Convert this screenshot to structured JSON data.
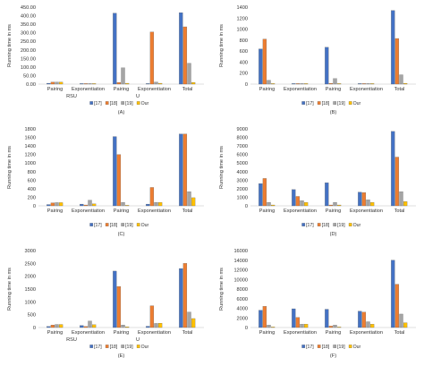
{
  "series_colors": [
    "#4472c4",
    "#ed7d31",
    "#a5a5a5",
    "#ffc000"
  ],
  "chart_data": [
    {
      "type": "bar",
      "panel_label": "(A)",
      "ylabel": "Running time in ms",
      "categories": [
        "Pairing",
        "Exponentiation",
        "Pairing",
        "Exponentiation",
        "Total"
      ],
      "group_labels": [
        {
          "text": "RSU",
          "categories": [
            0,
            1
          ]
        },
        {
          "text": "U",
          "categories": [
            2,
            3
          ]
        }
      ],
      "ylim": [
        0,
        450
      ],
      "yticks": [
        "0.00",
        "50.00",
        "100.00",
        "150.00",
        "200.00",
        "250.00",
        "300.00",
        "350.00",
        "400.00",
        "450.00"
      ],
      "series": [
        {
          "name": "[17]",
          "values": [
            5,
            2,
            415,
            2,
            418
          ]
        },
        {
          "name": "[18]",
          "values": [
            12,
            2,
            10,
            305,
            335
          ]
        },
        {
          "name": "[19]",
          "values": [
            12,
            1,
            95,
            12,
            122
          ]
        },
        {
          "name": "Our",
          "values": [
            12,
            1,
            5,
            5,
            10
          ]
        }
      ]
    },
    {
      "type": "bar",
      "panel_label": "(B)",
      "ylabel": "Running time in ms",
      "categories": [
        "Pairing",
        "Exponentiation",
        "Pairing",
        "Exponentiation",
        "Total"
      ],
      "group_labels": [],
      "ylim": [
        0,
        1400
      ],
      "yticks": [
        "0",
        "200",
        "400",
        "600",
        "800",
        "1000",
        "1200",
        "1400"
      ],
      "series": [
        {
          "name": "[17]",
          "values": [
            640,
            8,
            670,
            8,
            1340
          ]
        },
        {
          "name": "[18]",
          "values": [
            820,
            8,
            15,
            8,
            830
          ]
        },
        {
          "name": "[19]",
          "values": [
            70,
            5,
            100,
            6,
            170
          ]
        },
        {
          "name": "Our",
          "values": [
            10,
            5,
            10,
            6,
            15
          ]
        }
      ]
    },
    {
      "type": "bar",
      "panel_label": "(C)",
      "ylabel": "Running time in ms",
      "categories": [
        "Pairing",
        "Exponentiation",
        "Pairing",
        "Exponentiation",
        "Total"
      ],
      "group_labels": [],
      "ylim": [
        0,
        1800
      ],
      "yticks": [
        "0",
        "200",
        "400",
        "600",
        "800",
        "1000",
        "1200",
        "1400",
        "1600",
        "1800"
      ],
      "series": [
        {
          "name": "[17]",
          "values": [
            30,
            40,
            1620,
            40,
            1680
          ]
        },
        {
          "name": "[18]",
          "values": [
            70,
            20,
            1200,
            430,
            1680
          ]
        },
        {
          "name": "[19]",
          "values": [
            75,
            130,
            80,
            80,
            330
          ]
        },
        {
          "name": "Our",
          "values": [
            75,
            45,
            10,
            80,
            190
          ]
        }
      ]
    },
    {
      "type": "bar",
      "panel_label": "(D)",
      "ylabel": "Running time in ms",
      "categories": [
        "Pairing",
        "Exponentiation",
        "Pairing",
        "Exponentiation",
        "Total"
      ],
      "group_labels": [],
      "ylim": [
        0,
        9000
      ],
      "yticks": [
        "0",
        "1000",
        "2000",
        "3000",
        "4000",
        "5000",
        "6000",
        "7000",
        "8000",
        "9000"
      ],
      "series": [
        {
          "name": "[17]",
          "values": [
            2600,
            1900,
            2700,
            1600,
            8700
          ]
        },
        {
          "name": "[18]",
          "values": [
            3200,
            1100,
            100,
            1550,
            5700
          ]
        },
        {
          "name": "[19]",
          "values": [
            400,
            600,
            400,
            700,
            1650
          ]
        },
        {
          "name": "Our",
          "values": [
            100,
            400,
            100,
            400,
            500
          ]
        }
      ]
    },
    {
      "type": "bar",
      "panel_label": "(E)",
      "ylabel": "Running time in ms",
      "categories": [
        "Pairing",
        "Exponentiation",
        "Pairing",
        "Exponentiation",
        "Total"
      ],
      "group_labels": [
        {
          "text": "RSU",
          "categories": [
            0,
            1
          ]
        },
        {
          "text": "U",
          "categories": [
            2,
            3
          ]
        }
      ],
      "ylim": [
        0,
        3000
      ],
      "yticks": [
        "0",
        "500",
        "1000",
        "1500",
        "2000",
        "2500",
        "3000"
      ],
      "series": [
        {
          "name": "[17]",
          "values": [
            40,
            80,
            2200,
            50,
            2300
          ]
        },
        {
          "name": "[18]",
          "values": [
            100,
            40,
            1600,
            850,
            2500
          ]
        },
        {
          "name": "[19]",
          "values": [
            120,
            250,
            100,
            160,
            600
          ]
        },
        {
          "name": "Our",
          "values": [
            120,
            110,
            30,
            170,
            350
          ]
        }
      ]
    },
    {
      "type": "bar",
      "panel_label": "(F)",
      "ylabel": "Running time in ms",
      "categories": [
        "Pairing",
        "Exponentiation",
        "Pairing",
        "Exponentiation",
        "Total"
      ],
      "group_labels": [],
      "ylim": [
        0,
        16000
      ],
      "yticks": [
        "0",
        "2000",
        "4000",
        "6000",
        "8000",
        "10000",
        "12000",
        "14000",
        "16000"
      ],
      "series": [
        {
          "name": "[17]",
          "values": [
            3600,
            3900,
            3800,
            3400,
            14000
          ]
        },
        {
          "name": "[18]",
          "values": [
            4400,
            2100,
            300,
            3200,
            9000
          ]
        },
        {
          "name": "[19]",
          "values": [
            500,
            700,
            500,
            1200,
            2800
          ]
        },
        {
          "name": "Our",
          "values": [
            100,
            700,
            100,
            700,
            1000
          ]
        }
      ]
    }
  ]
}
